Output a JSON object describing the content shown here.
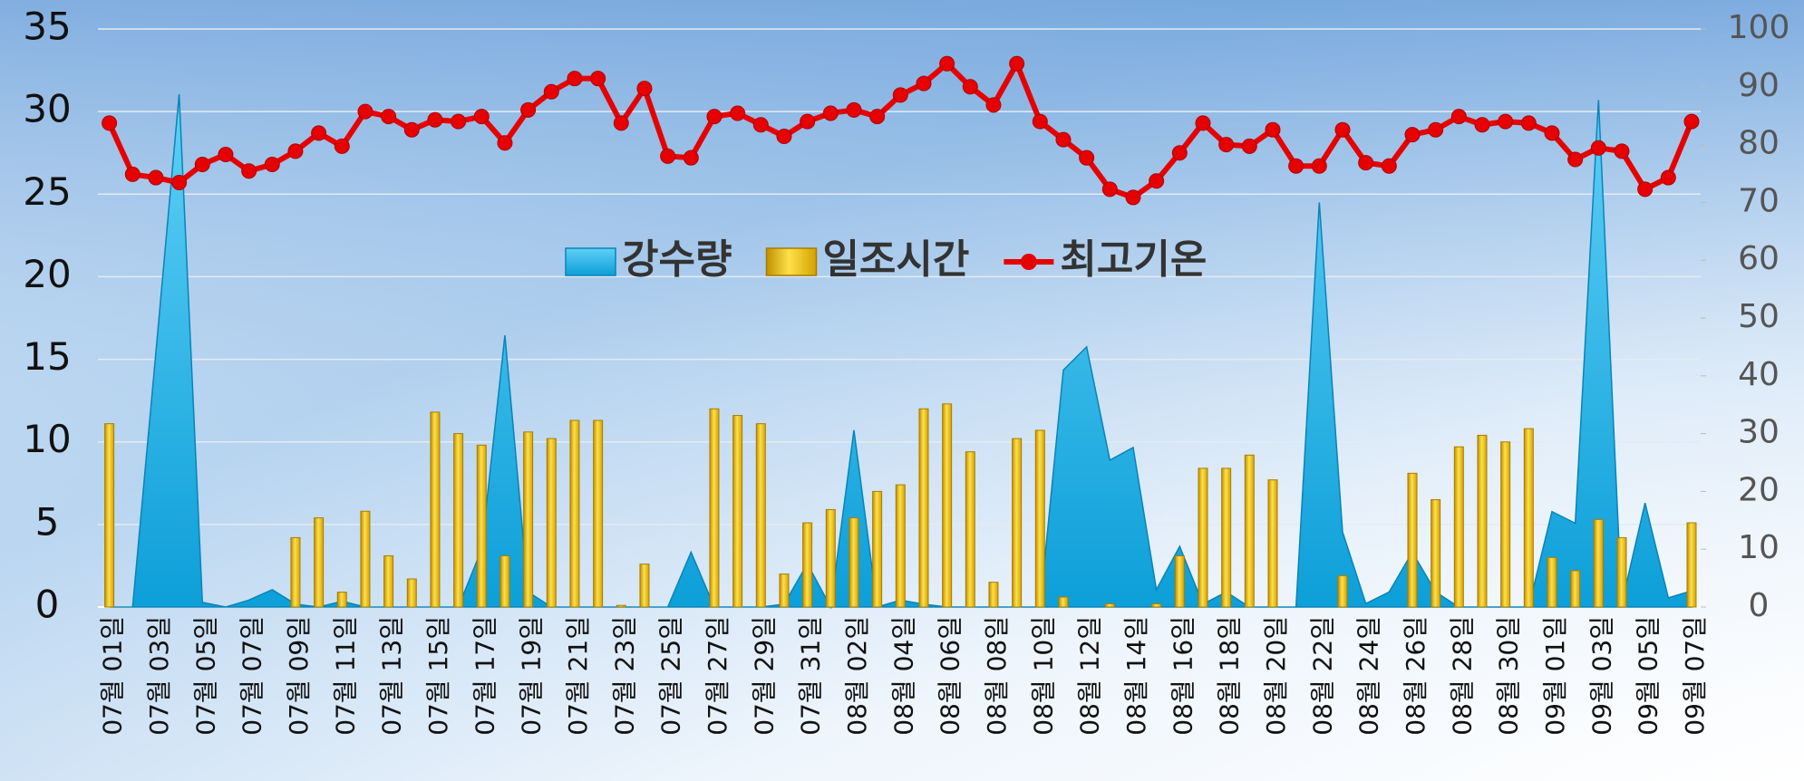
{
  "chart_data": {
    "type": "combo",
    "categories": [
      "07월 01일",
      null,
      "07월 03일",
      null,
      "07월 05일",
      null,
      "07월 07일",
      null,
      "07월 09일",
      null,
      "07월 11일",
      null,
      "07월 13일",
      null,
      "07월 15일",
      null,
      "07월 17일",
      null,
      "07월 19일",
      null,
      "07월 21일",
      null,
      "07월 23일",
      null,
      "07월 25일",
      null,
      "07월 27일",
      null,
      "07월 29일",
      null,
      "07월 31일",
      null,
      "08월 02일",
      null,
      "08월 04일",
      null,
      "08월 06일",
      null,
      "08월 08일",
      null,
      "08월 10일",
      null,
      "08월 12일",
      null,
      "08월 14일",
      null,
      "08월 16일",
      null,
      "08월 18일",
      null,
      "08월 20일",
      null,
      "08월 22일",
      null,
      "08월 24일",
      null,
      "08월 26일",
      null,
      "08월 28일",
      null,
      "08월 30일",
      null,
      "09월 01일",
      null,
      "09월 03일",
      null,
      "09월 05일",
      null,
      "09월 07일"
    ],
    "series": [
      {
        "name": "강수량",
        "type": "area",
        "axis": "y2",
        "color": "#19aee6",
        "values": [
          0,
          0,
          44,
          88.7,
          0.8,
          0,
          1.2,
          3,
          0.5,
          0,
          1,
          0,
          0,
          0,
          0,
          0,
          10,
          47,
          2.6,
          0,
          0,
          0,
          0,
          0,
          0,
          9.5,
          0,
          0,
          0,
          0.5,
          7.5,
          0,
          30.6,
          0,
          1.2,
          0.5,
          0,
          0,
          0,
          0,
          0,
          41,
          45,
          25.4,
          27.6,
          3,
          10.5,
          0.5,
          2.6,
          0,
          0,
          0,
          70,
          13,
          0.6,
          2.6,
          9.5,
          2.6,
          0,
          0,
          0,
          0,
          16.5,
          14.5,
          87.7,
          0.6,
          18,
          1.6,
          2.8
        ]
      },
      {
        "name": "일조시간",
        "type": "bar",
        "color": "#f2c200",
        "values": [
          11.1,
          0,
          0,
          0,
          0,
          0,
          0,
          0,
          4.2,
          5.4,
          0.9,
          5.8,
          3.1,
          1.7,
          11.8,
          10.5,
          9.8,
          3.1,
          10.6,
          10.2,
          11.3,
          11.3,
          0.1,
          2.6,
          0,
          0,
          12.0,
          11.6,
          11.1,
          2.0,
          5.1,
          5.9,
          5.4,
          7.0,
          7.4,
          12.0,
          12.3,
          9.4,
          1.5,
          10.2,
          10.7,
          0.6,
          0,
          0.2,
          0,
          0.2,
          3.1,
          8.4,
          8.4,
          9.2,
          7.7,
          0,
          0,
          1.9,
          0,
          0,
          8.1,
          6.5,
          9.7,
          10.4,
          10.0,
          10.8,
          3.0,
          2.2,
          5.3,
          4.2,
          0,
          0,
          5.1
        ]
      },
      {
        "name": "최고기온",
        "type": "line",
        "color": "#e60000",
        "values": [
          29.3,
          26.2,
          26.0,
          25.7,
          26.8,
          27.4,
          26.4,
          26.8,
          27.6,
          28.7,
          27.9,
          30.0,
          29.7,
          28.9,
          29.5,
          29.4,
          29.7,
          28.1,
          30.1,
          31.2,
          32.0,
          32.0,
          29.3,
          31.4,
          27.3,
          27.2,
          29.7,
          29.9,
          29.2,
          28.5,
          29.4,
          29.9,
          30.1,
          29.7,
          31.0,
          31.7,
          32.9,
          31.5,
          30.4,
          32.9,
          29.4,
          28.3,
          27.2,
          25.3,
          24.8,
          25.8,
          27.5,
          29.3,
          28.0,
          27.9,
          28.9,
          26.7,
          26.7,
          28.9,
          26.9,
          26.7,
          28.6,
          28.9,
          29.7,
          29.2,
          29.4,
          29.3,
          28.7,
          27.1,
          27.8,
          27.6,
          25.3,
          26.0,
          29.4
        ]
      }
    ],
    "ylim": [
      0,
      35
    ],
    "yticks": [
      0,
      5,
      10,
      15,
      20,
      25,
      30,
      35
    ],
    "y2lim": [
      0,
      100
    ],
    "y2ticks": [
      0,
      10,
      20,
      30,
      40,
      50,
      60,
      70,
      80,
      90,
      100
    ],
    "grid": true,
    "legend": "center"
  }
}
